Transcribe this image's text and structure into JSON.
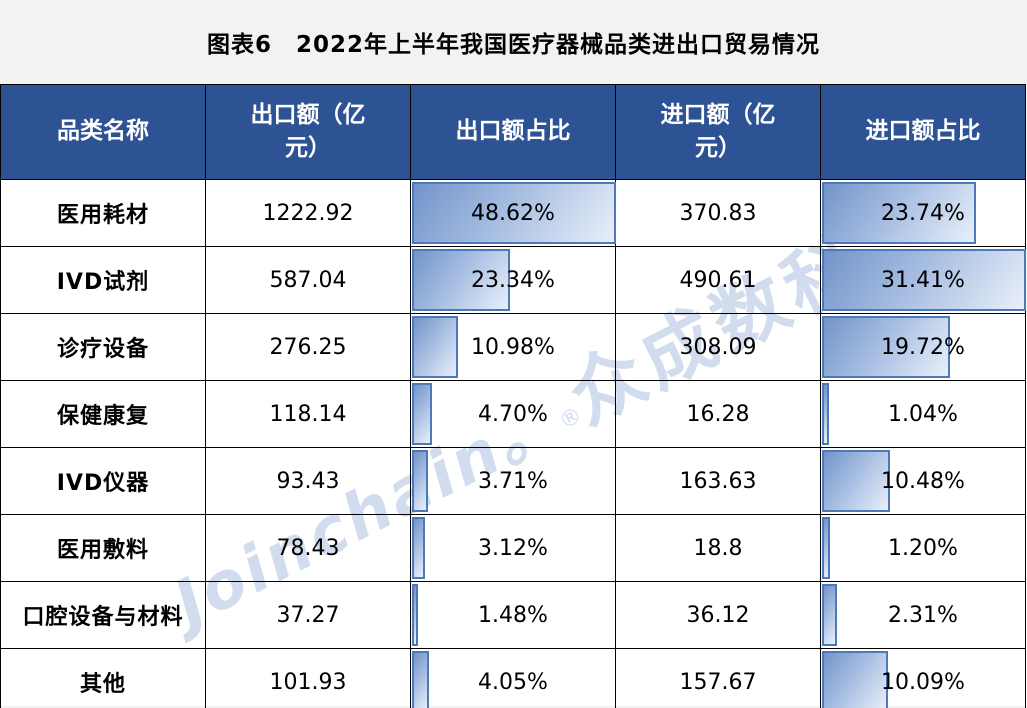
{
  "title": "图表6　2022年上半年我国医疗器械品类进出口贸易情况",
  "table": {
    "headers": [
      "品类名称",
      "出口额（亿元）",
      "出口额占比",
      "进口额（亿元）",
      "进口额占比"
    ],
    "export_ratio_max": 48.62,
    "import_ratio_max": 31.41,
    "rows": [
      {
        "name": "医用耗材",
        "export": "1222.92",
        "export_ratio": "48.62%",
        "export_ratio_value": 48.62,
        "import": "370.83",
        "import_ratio": "23.74%",
        "import_ratio_value": 23.74
      },
      {
        "name": "IVD试剂",
        "export": "587.04",
        "export_ratio": "23.34%",
        "export_ratio_value": 23.34,
        "import": "490.61",
        "import_ratio": "31.41%",
        "import_ratio_value": 31.41
      },
      {
        "name": "诊疗设备",
        "export": "276.25",
        "export_ratio": "10.98%",
        "export_ratio_value": 10.98,
        "import": "308.09",
        "import_ratio": "19.72%",
        "import_ratio_value": 19.72
      },
      {
        "name": "保健康复",
        "export": "118.14",
        "export_ratio": "4.70%",
        "export_ratio_value": 4.7,
        "import": "16.28",
        "import_ratio": "1.04%",
        "import_ratio_value": 1.04
      },
      {
        "name": "IVD仪器",
        "export": "93.43",
        "export_ratio": "3.71%",
        "export_ratio_value": 3.71,
        "import": "163.63",
        "import_ratio": "10.48%",
        "import_ratio_value": 10.48
      },
      {
        "name": "医用敷料",
        "export": "78.43",
        "export_ratio": "3.12%",
        "export_ratio_value": 3.12,
        "import": "18.8",
        "import_ratio": "1.20%",
        "import_ratio_value": 1.2
      },
      {
        "name": "口腔设备与材料",
        "export": "37.27",
        "export_ratio": "1.48%",
        "export_ratio_value": 1.48,
        "import": "36.12",
        "import_ratio": "2.31%",
        "import_ratio_value": 2.31
      },
      {
        "name": "其他",
        "export": "101.93",
        "export_ratio": "4.05%",
        "export_ratio_value": 4.05,
        "import": "157.67",
        "import_ratio": "10.09%",
        "import_ratio_value": 10.09
      }
    ]
  },
  "chart_data": {
    "type": "table",
    "title": "图表6　2022年上半年我国医疗器械品类进出口贸易情况",
    "categories": [
      "医用耗材",
      "IVD试剂",
      "诊疗设备",
      "保健康复",
      "IVD仪器",
      "医用敷料",
      "口腔设备与材料",
      "其他"
    ],
    "series": [
      {
        "name": "出口额（亿元）",
        "values": [
          1222.92,
          587.04,
          276.25,
          118.14,
          93.43,
          78.43,
          37.27,
          101.93
        ]
      },
      {
        "name": "出口额占比",
        "unit": "%",
        "values": [
          48.62,
          23.34,
          10.98,
          4.7,
          3.71,
          3.12,
          1.48,
          4.05
        ],
        "databar_scale_max": 48.62
      },
      {
        "name": "进口额（亿元）",
        "values": [
          370.83,
          490.61,
          308.09,
          16.28,
          163.63,
          18.8,
          36.12,
          157.67
        ]
      },
      {
        "name": "进口额占比",
        "unit": "%",
        "values": [
          23.74,
          31.41,
          19.72,
          1.04,
          10.48,
          1.2,
          2.31,
          10.09
        ],
        "databar_scale_max": 31.41
      }
    ],
    "layout": "data table with gradient data bars in the two ratio columns, bar length proportional to value relative to column maximum"
  },
  "watermark": {
    "latin": "Joinchain。",
    "registered_mark": "®",
    "cjk": "众成数科"
  },
  "colors": {
    "page_bg": "#f2f2f2",
    "header_bg": "#2e5394",
    "header_text": "#ffffff",
    "cell_bg": "#ffffff",
    "grid_border": "#000000",
    "bar_border": "#4d79bb",
    "bar_fill_start": "#7394ca",
    "bar_fill_end": "#e9effa",
    "watermark": "rgba(136,164,213,0.38)"
  }
}
